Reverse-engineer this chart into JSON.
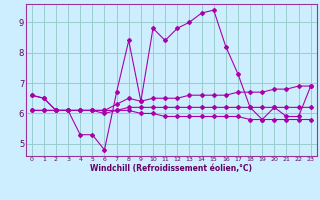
{
  "xlabel": "Windchill (Refroidissement éolien,°C)",
  "bg_color": "#cceeff",
  "grid_color": "#99cccc",
  "line_color": "#aa00aa",
  "x_labels": [
    "0",
    "1",
    "2",
    "3",
    "4",
    "5",
    "6",
    "7",
    "8",
    "9",
    "10",
    "11",
    "12",
    "13",
    "14",
    "15",
    "16",
    "17",
    "18",
    "19",
    "20",
    "21",
    "22",
    "23"
  ],
  "ylim": [
    4.6,
    9.6
  ],
  "yticks": [
    5,
    6,
    7,
    8,
    9
  ],
  "series": {
    "line1": [
      6.6,
      6.5,
      6.1,
      6.1,
      5.3,
      5.3,
      4.8,
      6.7,
      8.4,
      6.4,
      8.8,
      8.4,
      8.8,
      9.0,
      9.3,
      9.4,
      8.2,
      7.3,
      6.2,
      5.8,
      6.2,
      5.9,
      5.9,
      6.9
    ],
    "line2": [
      6.6,
      6.5,
      6.1,
      6.1,
      6.1,
      6.1,
      6.1,
      6.3,
      6.5,
      6.4,
      6.5,
      6.5,
      6.5,
      6.6,
      6.6,
      6.6,
      6.6,
      6.7,
      6.7,
      6.7,
      6.8,
      6.8,
      6.9,
      6.9
    ],
    "line3": [
      6.1,
      6.1,
      6.1,
      6.1,
      6.1,
      6.1,
      6.1,
      6.1,
      6.2,
      6.2,
      6.2,
      6.2,
      6.2,
      6.2,
      6.2,
      6.2,
      6.2,
      6.2,
      6.2,
      6.2,
      6.2,
      6.2,
      6.2,
      6.2
    ],
    "line4": [
      6.1,
      6.1,
      6.1,
      6.1,
      6.1,
      6.1,
      6.0,
      6.1,
      6.1,
      6.0,
      6.0,
      5.9,
      5.9,
      5.9,
      5.9,
      5.9,
      5.9,
      5.9,
      5.8,
      5.8,
      5.8,
      5.8,
      5.8,
      5.8
    ]
  }
}
